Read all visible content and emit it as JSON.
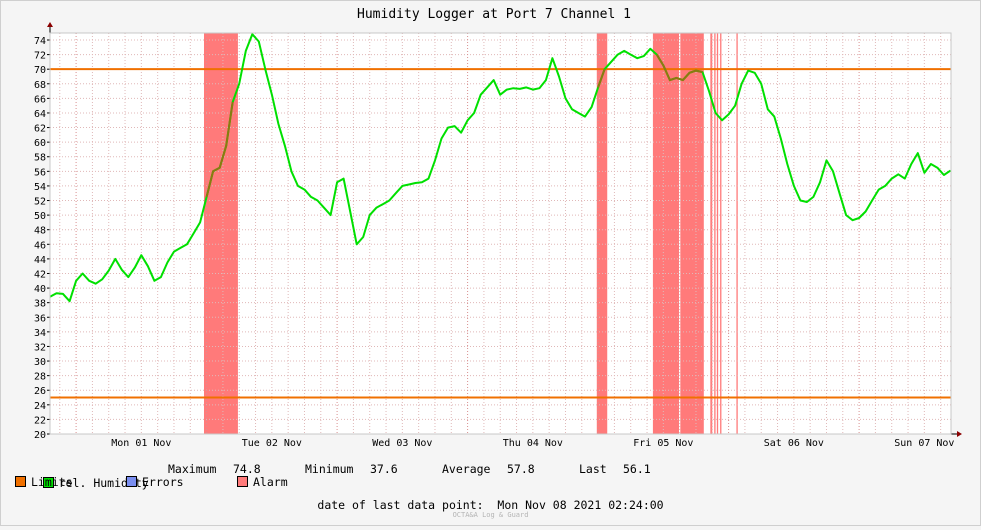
{
  "chart_data": {
    "type": "line",
    "title": "Humidity Logger at Port 7 Channel 1",
    "ylim": [
      20,
      75
    ],
    "y_ticks": [
      20,
      22,
      24,
      26,
      28,
      30,
      32,
      34,
      36,
      38,
      40,
      42,
      44,
      46,
      48,
      50,
      52,
      54,
      56,
      58,
      60,
      62,
      64,
      66,
      68,
      70,
      72,
      74
    ],
    "xlim_days_from_mon01": [
      -0.2,
      6.7
    ],
    "x_tick_labels": [
      "Mon 01 Nov",
      "Tue 02 Nov",
      "Wed 03 Nov",
      "Thu 04 Nov",
      "Fri 05 Nov",
      "Sat 06 Nov",
      "Sun 07 Nov"
    ],
    "limits": [
      70,
      25
    ],
    "series": [
      {
        "name": "rel. Humidity",
        "color": "#00e000",
        "x": [
          -0.2,
          -0.15,
          -0.1,
          -0.05,
          0.0,
          0.05,
          0.1,
          0.15,
          0.2,
          0.25,
          0.3,
          0.35,
          0.4,
          0.45,
          0.5,
          0.55,
          0.6,
          0.65,
          0.7,
          0.75,
          0.8,
          0.85,
          0.9,
          0.95,
          1.0,
          1.05,
          1.1,
          1.15,
          1.2,
          1.25,
          1.3,
          1.35,
          1.4,
          1.45,
          1.5,
          1.55,
          1.6,
          1.65,
          1.7,
          1.75,
          1.8,
          1.85,
          1.9,
          1.95,
          2.0,
          2.05,
          2.1,
          2.15,
          2.2,
          2.25,
          2.3,
          2.35,
          2.4,
          2.45,
          2.5,
          2.55,
          2.6,
          2.65,
          2.7,
          2.75,
          2.8,
          2.85,
          2.9,
          2.95,
          3.0,
          3.05,
          3.1,
          3.15,
          3.2,
          3.25,
          3.3,
          3.35,
          3.4,
          3.45,
          3.5,
          3.55,
          3.6,
          3.65,
          3.7,
          3.75,
          3.8,
          3.85,
          3.9,
          3.95,
          4.0,
          4.05,
          4.1,
          4.15,
          4.2,
          4.25,
          4.3,
          4.35,
          4.4,
          4.45,
          4.5,
          4.55,
          4.6,
          4.65,
          4.7,
          4.75,
          4.8,
          4.85,
          4.9,
          4.95,
          5.0,
          5.05,
          5.1,
          5.15,
          5.2,
          5.25,
          5.3,
          5.35,
          5.4,
          5.45,
          5.5,
          5.55,
          5.6,
          5.65,
          5.7,
          5.75,
          5.8,
          5.85,
          5.9,
          5.95,
          6.0,
          6.05,
          6.1,
          6.15,
          6.2,
          6.25,
          6.3,
          6.35,
          6.4,
          6.45,
          6.5,
          6.55,
          6.6,
          6.65,
          6.7
        ],
        "values": [
          38.8,
          39.3,
          39.2,
          38.2,
          41.0,
          42.0,
          41.0,
          40.6,
          41.2,
          42.4,
          44.0,
          42.5,
          41.5,
          42.8,
          44.5,
          43.0,
          41.0,
          41.5,
          43.5,
          45.0,
          45.5,
          46.0,
          47.5,
          49.0,
          52.5,
          56.0,
          56.5,
          59.5,
          65.5,
          68.0,
          72.5,
          74.8,
          73.8,
          70.0,
          66.5,
          62.5,
          59.5,
          56.0,
          54.0,
          53.5,
          52.5,
          52.0,
          51.0,
          50.0,
          54.5,
          55.0,
          50.5,
          46.0,
          47.0,
          50.0,
          51.0,
          51.5,
          52.0,
          53.0,
          54.0,
          54.2,
          54.4,
          54.5,
          55.0,
          57.5,
          60.5,
          62.0,
          62.2,
          61.3,
          63.0,
          64.0,
          66.5,
          67.5,
          68.5,
          66.5,
          67.2,
          67.4,
          67.3,
          67.5,
          67.2,
          67.4,
          68.5,
          71.5,
          69.0,
          66.0,
          64.5,
          64.0,
          63.5,
          64.8,
          67.5,
          70.0,
          71.0,
          72.0,
          72.5,
          72.0,
          71.5,
          71.8,
          72.8,
          72.0,
          70.5,
          68.5,
          68.8,
          68.5,
          69.5,
          69.8,
          69.6,
          67.0,
          64.0,
          63.0,
          63.8,
          65.0,
          68.0,
          69.8,
          69.5,
          68.0,
          64.5,
          63.5,
          60.5,
          57.0,
          54.0,
          52.0,
          51.8,
          52.5,
          54.5,
          57.5,
          56.0,
          53.0,
          50.0,
          49.3,
          49.6,
          50.5,
          52.0,
          53.5,
          54.0,
          55.0,
          55.6,
          55.0,
          57.0,
          58.5,
          55.8,
          57.0,
          56.5,
          55.5,
          56.1
        ]
      }
    ],
    "alarm_spans": [
      [
        0.98,
        1.24
      ],
      [
        3.99,
        4.07
      ],
      [
        4.42,
        4.62
      ],
      [
        4.63,
        4.81
      ],
      [
        4.86,
        4.875
      ],
      [
        4.89,
        4.9
      ],
      [
        4.91,
        4.92
      ],
      [
        4.935,
        4.945
      ],
      [
        5.06,
        5.07
      ]
    ]
  },
  "stats": {
    "maximum_label": "Maximum",
    "maximum_value": "74.8",
    "minimum_label": "Minimum",
    "minimum_value": "37.6",
    "average_label": "Average",
    "average_value": "57.8",
    "last_label": "Last",
    "last_value": "56.1"
  },
  "legend": {
    "humidity": "rel. Humidity",
    "limits": "Limits",
    "errors": "Errors",
    "alarm": "Alarm",
    "humidity_color": "#00e000",
    "limits_color": "#f07000",
    "errors_color": "#7a8ef0",
    "alarm_color": "#ff7a7a"
  },
  "footer": {
    "last_point_label": "date of last data point:",
    "last_point_value": "Mon Nov 08 2021 02:24:00",
    "watermark": "OCTA&A Log & Guard"
  }
}
